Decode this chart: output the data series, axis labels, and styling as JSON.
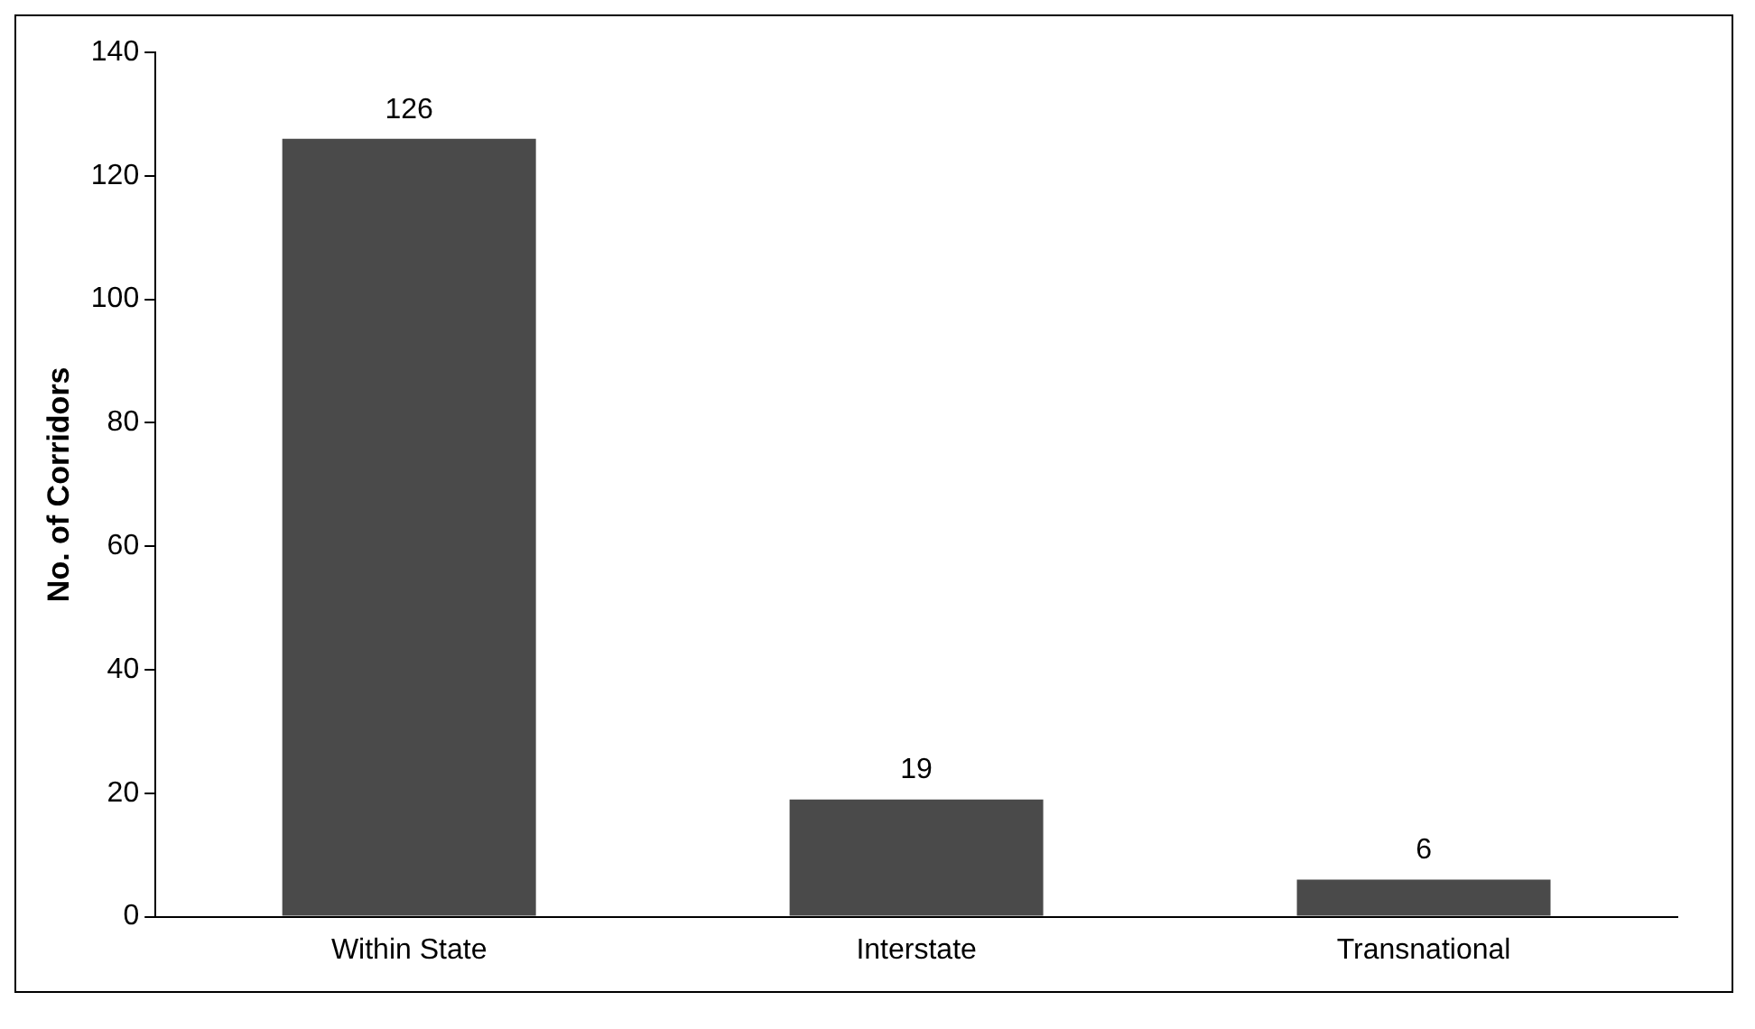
{
  "chart_data": {
    "type": "bar",
    "ylabel": "No. of Corridors",
    "categories": [
      "Within State",
      "Interstate",
      "Transnational"
    ],
    "values": [
      126,
      19,
      6
    ],
    "color": "#4a4a4a",
    "ylim": [
      0,
      140
    ],
    "yticks": [
      0,
      20,
      40,
      60,
      80,
      100,
      120,
      140
    ],
    "grid": false,
    "legend": false,
    "data_labels": true
  }
}
